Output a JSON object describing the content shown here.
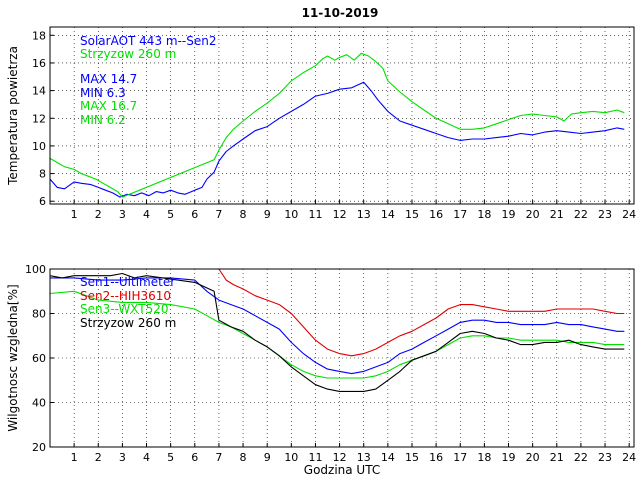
{
  "colors": {
    "blue": "#0000ff",
    "green": "#00e000",
    "red": "#e00000",
    "black": "#000000"
  },
  "chart_data": [
    {
      "type": "line",
      "title": "11-10-2019",
      "xlabel": "",
      "ylabel": "Temperatura powietrza",
      "xlim": [
        0,
        24.2
      ],
      "ylim": [
        5.8,
        18.6
      ],
      "xticks": [
        1,
        2,
        3,
        4,
        5,
        6,
        7,
        8,
        9,
        10,
        11,
        12,
        13,
        14,
        15,
        16,
        17,
        18,
        19,
        20,
        21,
        22,
        23,
        24
      ],
      "yticks": [
        6,
        8,
        10,
        12,
        14,
        16,
        18
      ],
      "grid": true,
      "legend": {
        "entries": [
          {
            "text": "SolarAOT 443 m--Sen2",
            "color": "#0000ff"
          },
          {
            "text": "Strzyzow 260 m",
            "color": "#00e000"
          }
        ],
        "stats": [
          {
            "text": "MAX 14.7",
            "color": "#0000ff"
          },
          {
            "text": "MIN 6.3",
            "color": "#0000ff"
          },
          {
            "text": "MAX 16.7",
            "color": "#00e000"
          },
          {
            "text": "MIN 6.2",
            "color": "#00e000"
          }
        ]
      },
      "series": [
        {
          "name": "SolarAOT 443 m--Sen2",
          "color": "#0000ff",
          "x": [
            0,
            0.3,
            0.6,
            1.0,
            1.3,
            1.7,
            2.0,
            2.3,
            2.6,
            2.9,
            3.2,
            3.5,
            3.8,
            4.1,
            4.4,
            4.7,
            5.0,
            5.3,
            5.6,
            6.0,
            6.3,
            6.5,
            6.8,
            7.0,
            7.3,
            7.6,
            8.0,
            8.5,
            9.0,
            9.5,
            10.0,
            10.5,
            11.0,
            11.5,
            12.0,
            12.5,
            13.0,
            13.3,
            13.6,
            14.0,
            14.5,
            15.0,
            15.5,
            16.0,
            16.5,
            17.0,
            17.5,
            18.0,
            18.5,
            19.0,
            19.5,
            20.0,
            20.5,
            21.0,
            21.5,
            22.0,
            22.5,
            23.0,
            23.5,
            23.8
          ],
          "y": [
            7.6,
            7.0,
            6.9,
            7.4,
            7.3,
            7.2,
            7.0,
            6.8,
            6.6,
            6.3,
            6.5,
            6.4,
            6.6,
            6.4,
            6.7,
            6.6,
            6.8,
            6.6,
            6.5,
            6.8,
            7.0,
            7.6,
            8.1,
            8.9,
            9.6,
            10.0,
            10.5,
            11.1,
            11.4,
            12.0,
            12.5,
            13.0,
            13.6,
            13.8,
            14.1,
            14.2,
            14.6,
            14.0,
            13.3,
            12.5,
            11.8,
            11.5,
            11.2,
            10.9,
            10.6,
            10.4,
            10.5,
            10.5,
            10.6,
            10.7,
            10.9,
            10.8,
            11.0,
            11.1,
            11.0,
            10.9,
            11.0,
            11.1,
            11.3,
            11.2
          ]
        },
        {
          "name": "Strzyzow 260 m",
          "color": "#00e000",
          "x": [
            0,
            0.3,
            0.6,
            1.0,
            1.3,
            1.6,
            1.9,
            2.2,
            2.5,
            2.8,
            3.0,
            6.8,
            7.0,
            7.3,
            7.6,
            8.0,
            8.5,
            9.0,
            9.5,
            10.0,
            10.5,
            11.0,
            11.3,
            11.5,
            11.8,
            12.0,
            12.3,
            12.6,
            12.9,
            13.2,
            13.5,
            13.8,
            14.0,
            14.5,
            15.0,
            15.5,
            16.0,
            16.5,
            17.0,
            17.5,
            18.0,
            18.5,
            19.0,
            19.5,
            20.0,
            20.5,
            21.0,
            21.3,
            21.6,
            22.0,
            22.5,
            23.0,
            23.5,
            23.8
          ],
          "y": [
            9.1,
            8.8,
            8.5,
            8.3,
            8.0,
            7.8,
            7.6,
            7.3,
            7.0,
            6.7,
            6.3,
            9.0,
            9.7,
            10.6,
            11.2,
            11.8,
            12.5,
            13.1,
            13.8,
            14.7,
            15.3,
            15.8,
            16.3,
            16.5,
            16.2,
            16.4,
            16.6,
            16.2,
            16.7,
            16.5,
            16.1,
            15.6,
            14.7,
            13.9,
            13.2,
            12.6,
            12.0,
            11.6,
            11.2,
            11.2,
            11.3,
            11.6,
            11.9,
            12.2,
            12.3,
            12.2,
            12.1,
            11.8,
            12.3,
            12.4,
            12.5,
            12.4,
            12.6,
            12.4
          ]
        }
      ]
    },
    {
      "type": "line",
      "title": "",
      "xlabel": "Godzina UTC",
      "ylabel": "Wilgotnosc wzgledna[%]",
      "xlim": [
        0,
        24.2
      ],
      "ylim": [
        20,
        100
      ],
      "xticks": [
        1,
        2,
        3,
        4,
        5,
        6,
        7,
        8,
        9,
        10,
        11,
        12,
        13,
        14,
        15,
        16,
        17,
        18,
        19,
        20,
        21,
        22,
        23,
        24
      ],
      "yticks": [
        20,
        40,
        60,
        80,
        100
      ],
      "grid": true,
      "legend": {
        "entries": [
          {
            "text": "Sen1--Ultimeter",
            "color": "#0000ff"
          },
          {
            "text": "Sen2--HIH3610",
            "color": "#e00000"
          },
          {
            "text": "Sen3--WXT520",
            "color": "#00e000"
          },
          {
            "text": "Strzyzow 260 m",
            "color": "#000000"
          }
        ],
        "stats": []
      },
      "series": [
        {
          "name": "Sen1--Ultimeter",
          "color": "#0000ff",
          "x": [
            0,
            1.0,
            2.0,
            3.0,
            4.0,
            5.0,
            6.0,
            6.5,
            7.0,
            7.5,
            8.0,
            8.5,
            9.0,
            9.5,
            10.0,
            10.5,
            11.0,
            11.5,
            12.0,
            12.5,
            13.0,
            13.5,
            14.0,
            14.5,
            15.0,
            15.5,
            16.0,
            16.5,
            17.0,
            17.5,
            18.0,
            18.5,
            19.0,
            19.5,
            20.0,
            20.5,
            21.0,
            21.5,
            22.0,
            22.5,
            23.0,
            23.5,
            23.8
          ],
          "y": [
            96,
            96,
            95,
            95,
            96,
            96,
            95,
            90,
            86,
            84,
            82,
            79,
            76,
            73,
            67,
            62,
            58,
            55,
            54,
            53,
            54,
            56,
            58,
            62,
            64,
            67,
            70,
            73,
            76,
            77,
            77,
            76,
            76,
            75,
            75,
            75,
            76,
            75,
            75,
            74,
            73,
            72,
            72
          ]
        },
        {
          "name": "Sen2--HIH3610",
          "color": "#e00000",
          "x": [
            7.0,
            7.3,
            7.6,
            8.0,
            8.5,
            9.0,
            9.5,
            10.0,
            10.5,
            11.0,
            11.5,
            12.0,
            12.5,
            13.0,
            13.5,
            14.0,
            14.5,
            15.0,
            15.5,
            16.0,
            16.5,
            17.0,
            17.5,
            18.0,
            18.5,
            19.0,
            19.5,
            20.0,
            20.5,
            21.0,
            21.5,
            22.0,
            22.5,
            23.0,
            23.5,
            23.8
          ],
          "y": [
            100,
            95,
            93,
            91,
            88,
            86,
            84,
            80,
            74,
            68,
            64,
            62,
            61,
            62,
            64,
            67,
            70,
            72,
            75,
            78,
            82,
            84,
            84,
            83,
            82,
            81,
            81,
            81,
            81,
            82,
            82,
            82,
            82,
            81,
            80,
            80
          ]
        },
        {
          "name": "Sen3--WXT520",
          "color": "#00e000",
          "x": [
            0,
            1.0,
            1.5,
            2.0,
            3.0,
            4.0,
            5.0,
            6.0,
            6.5,
            7.0,
            7.5,
            8.0,
            8.5,
            9.0,
            9.5,
            10.0,
            10.5,
            11.0,
            11.5,
            12.0,
            12.5,
            13.0,
            13.5,
            14.0,
            14.5,
            15.0,
            15.5,
            16.0,
            16.5,
            17.0,
            17.5,
            18.0,
            18.5,
            19.0,
            19.5,
            20.0,
            20.5,
            21.0,
            21.5,
            22.0,
            22.5,
            23.0,
            23.5,
            23.8
          ],
          "y": [
            89,
            90,
            88,
            86,
            85,
            85,
            84,
            82,
            79,
            76,
            74,
            71,
            68,
            65,
            61,
            57,
            54,
            52,
            51,
            51,
            51,
            51,
            52,
            54,
            57,
            59,
            61,
            63,
            66,
            69,
            70,
            70,
            69,
            69,
            68,
            68,
            68,
            68,
            67,
            67,
            67,
            66,
            66,
            66
          ]
        },
        {
          "name": "Strzyzow 260 m",
          "color": "#000000",
          "x": [
            0,
            0.5,
            1.0,
            1.5,
            2.0,
            2.5,
            3.0,
            3.5,
            4.0,
            6.0,
            6.8,
            7.0,
            7.5,
            8.0,
            8.5,
            9.0,
            9.5,
            10.0,
            10.5,
            11.0,
            11.5,
            12.0,
            12.5,
            13.0,
            13.5,
            14.0,
            14.5,
            15.0,
            15.5,
            16.0,
            16.5,
            17.0,
            17.5,
            18.0,
            18.5,
            19.0,
            19.5,
            20.0,
            20.5,
            21.0,
            21.5,
            22.0,
            22.5,
            23.0,
            23.5,
            23.8
          ],
          "y": [
            97,
            96,
            97,
            97,
            97,
            97,
            98,
            96,
            97,
            94,
            90,
            77,
            74,
            72,
            68,
            65,
            61,
            56,
            52,
            48,
            46,
            45,
            45,
            45,
            46,
            50,
            54,
            59,
            61,
            63,
            67,
            71,
            72,
            71,
            69,
            68,
            66,
            66,
            67,
            67,
            68,
            66,
            65,
            64,
            64,
            64
          ]
        }
      ]
    }
  ]
}
